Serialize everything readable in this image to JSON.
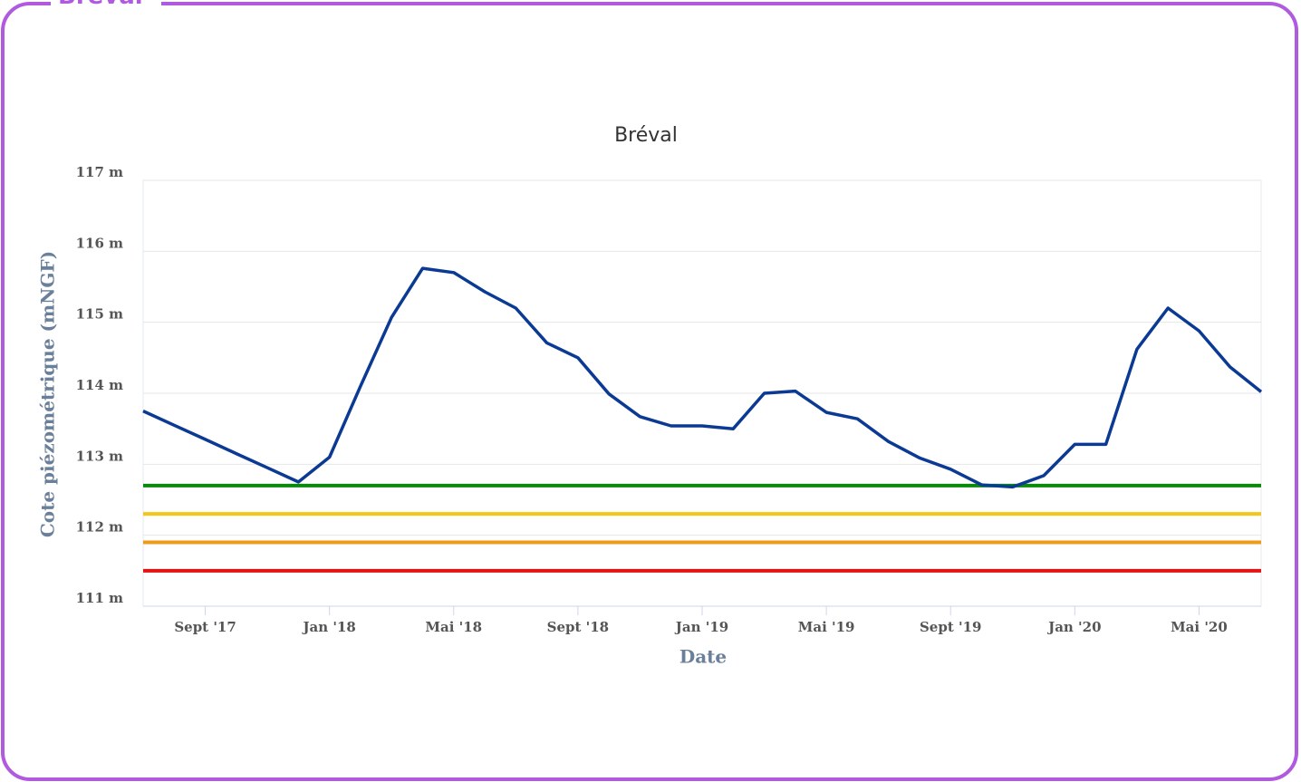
{
  "panel_title": "Bréval",
  "chart_data": {
    "type": "line",
    "title": "Bréval",
    "y_label": "Cote piézométrique (mNGF)",
    "x_label": "Date",
    "xlim": [
      "2017-07",
      "2020-07"
    ],
    "xticks": [
      {
        "value": "2017-09",
        "label": "Sept '17"
      },
      {
        "value": "2018-01",
        "label": "Jan '18"
      },
      {
        "value": "2018-05",
        "label": "Mai '18"
      },
      {
        "value": "2018-09",
        "label": "Sept '18"
      },
      {
        "value": "2019-01",
        "label": "Jan '19"
      },
      {
        "value": "2019-05",
        "label": "Mai '19"
      },
      {
        "value": "2019-09",
        "label": "Sept '19"
      },
      {
        "value": "2020-01",
        "label": "Jan '20"
      },
      {
        "value": "2020-05",
        "label": "Mai '20"
      }
    ],
    "ylim": [
      111,
      117
    ],
    "yticks": [
      {
        "value": 111,
        "label": "111 m"
      },
      {
        "value": 112,
        "label": "112 m"
      },
      {
        "value": 113,
        "label": "113 m"
      },
      {
        "value": 114,
        "label": "114 m"
      },
      {
        "value": 115,
        "label": "115 m"
      },
      {
        "value": 116,
        "label": "116 m"
      },
      {
        "value": 117,
        "label": "117 m"
      }
    ],
    "grid": true,
    "x": [
      "2017-07",
      "2017-08",
      "2017-09",
      "2017-10",
      "2017-11",
      "2017-12",
      "2018-01",
      "2018-02",
      "2018-03",
      "2018-04",
      "2018-05",
      "2018-06",
      "2018-07",
      "2018-08",
      "2018-09",
      "2018-10",
      "2018-11",
      "2018-12",
      "2019-01",
      "2019-02",
      "2019-03",
      "2019-04",
      "2019-05",
      "2019-06",
      "2019-07",
      "2019-08",
      "2019-09",
      "2019-10",
      "2019-11",
      "2019-12",
      "2020-01",
      "2020-02",
      "2020-03",
      "2020-04",
      "2020-05",
      "2020-06",
      "2020-07"
    ],
    "series": [
      {
        "color": "#0b3a94",
        "values": [
          113.75,
          113.55,
          113.35,
          113.15,
          112.95,
          112.75,
          113.1,
          114.1,
          115.07,
          115.76,
          115.7,
          115.43,
          115.2,
          114.71,
          114.5,
          113.99,
          113.67,
          113.54,
          113.54,
          113.5,
          114.0,
          114.03,
          113.73,
          113.64,
          113.32,
          113.09,
          112.93,
          112.71,
          112.68,
          112.84,
          113.28,
          113.28,
          114.62,
          115.2,
          114.88,
          114.37,
          114.02
        ]
      }
    ],
    "thresholds": [
      {
        "color": "#0a8a0a",
        "value": 112.7
      },
      {
        "color": "#f5c518",
        "value": 112.3
      },
      {
        "color": "#ee9a1a",
        "value": 111.9
      },
      {
        "color": "#e41414",
        "value": 111.5
      }
    ]
  }
}
